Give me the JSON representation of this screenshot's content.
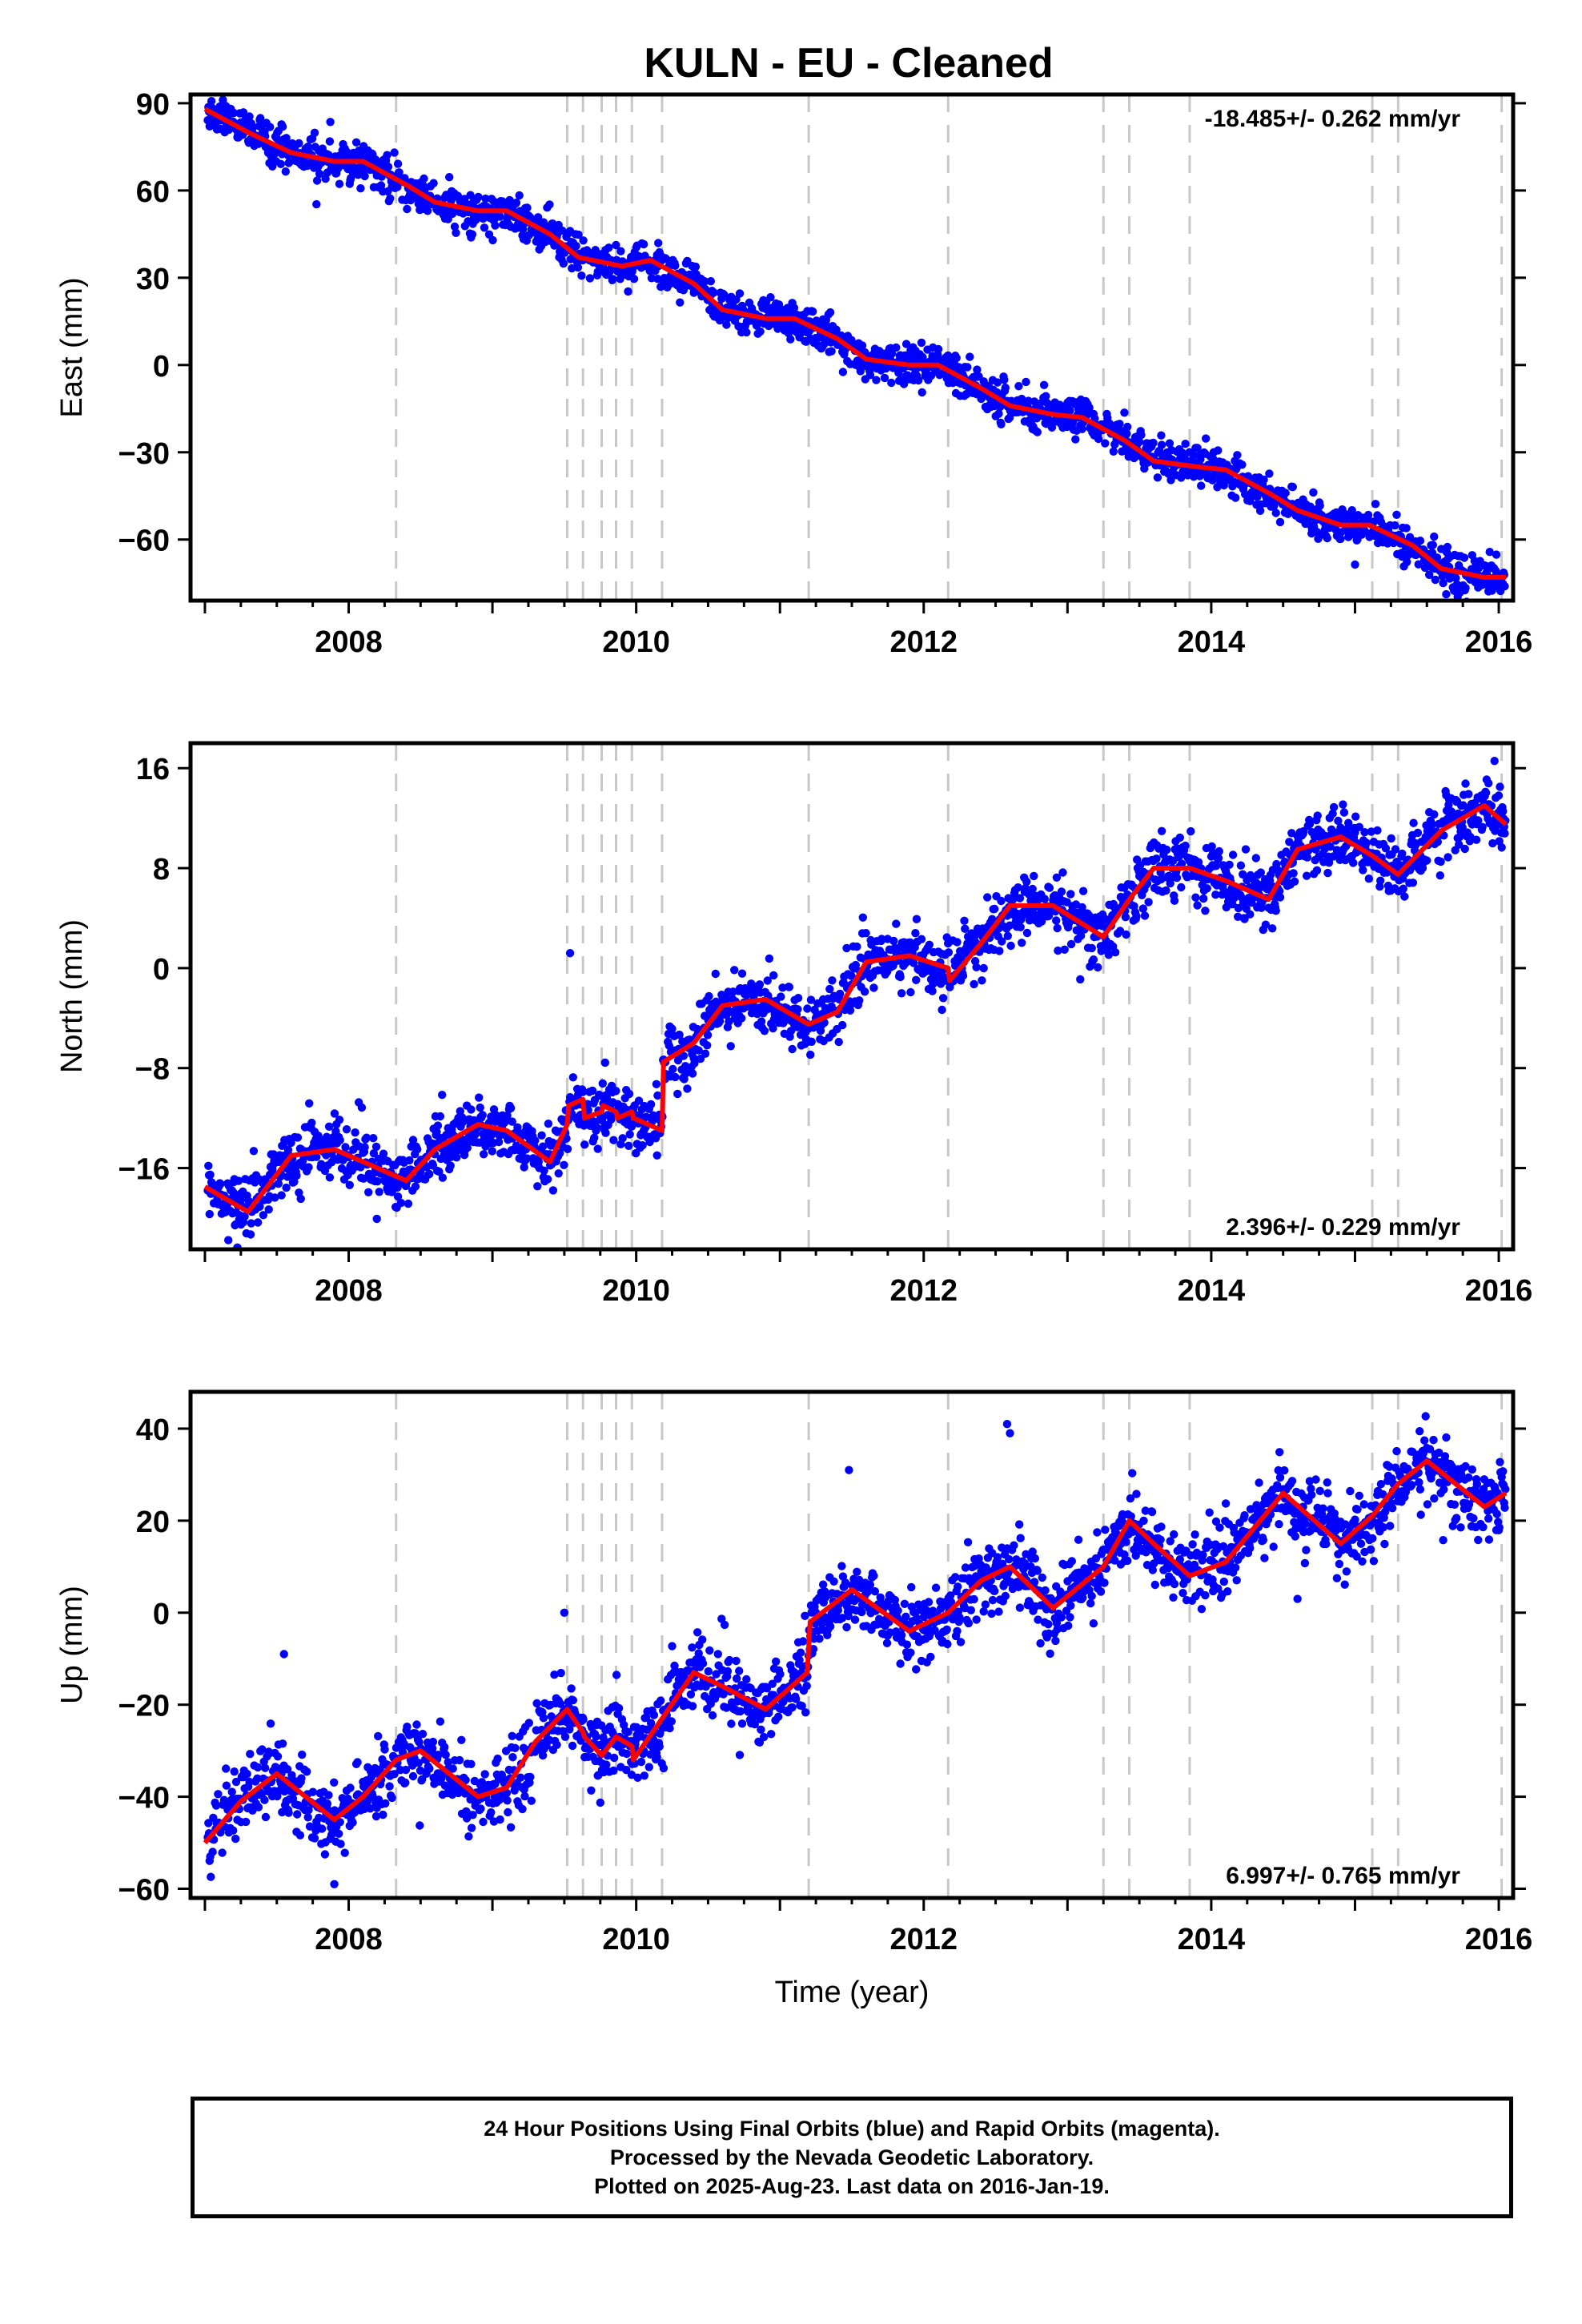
{
  "title": "KULN  - EU - Cleaned",
  "footer": {
    "line1": "24 Hour Positions Using Final Orbits (blue) and Rapid Orbits (magenta).",
    "line2": "Processed by the Nevada Geodetic Laboratory.",
    "line3": "Plotted on 2025-Aug-23. Last data on 2016-Jan-19."
  },
  "colors": {
    "points": "#0000ff",
    "model": "#ff0000",
    "breaks": "#c8c8c8",
    "frame": "#000000"
  },
  "chart_data": [
    {
      "type": "scatter",
      "ylabel": "East (mm)",
      "xlabel": "",
      "rate_label": "-18.485+/- 0.262 mm/yr",
      "rate_position": "top-right",
      "xlim": [
        2006.9,
        2016.1
      ],
      "ylim": [
        -81,
        93
      ],
      "xticks": [
        2008,
        2010,
        2012,
        2014,
        2016
      ],
      "yticks": [
        -60,
        -30,
        0,
        30,
        60,
        90
      ],
      "break_lines": [
        2008.33,
        2009.52,
        2009.63,
        2009.76,
        2009.86,
        2009.97,
        2010.18,
        2011.2,
        2012.17,
        2013.25,
        2013.43,
        2013.85,
        2015.12,
        2015.3,
        2016.02
      ],
      "model": {
        "x": [
          2007.0,
          2007.3,
          2007.6,
          2007.9,
          2008.1,
          2008.4,
          2008.6,
          2008.9,
          2009.1,
          2009.4,
          2009.6,
          2009.9,
          2010.1,
          2010.4,
          2010.6,
          2010.9,
          2011.1,
          2011.4,
          2011.6,
          2011.9,
          2012.1,
          2012.4,
          2012.6,
          2012.9,
          2013.1,
          2013.4,
          2013.6,
          2013.9,
          2014.1,
          2014.4,
          2014.6,
          2014.9,
          2015.1,
          2015.4,
          2015.6,
          2015.9,
          2016.05
        ],
        "y": [
          88,
          80,
          73,
          70,
          70,
          62,
          56,
          53,
          53,
          45,
          37,
          34,
          36,
          28,
          19,
          16,
          16,
          9,
          2,
          0,
          0,
          -8,
          -14,
          -17,
          -18,
          -26,
          -33,
          -35,
          -36,
          -44,
          -50,
          -55,
          -55,
          -62,
          -70,
          -73,
          -73
        ]
      },
      "scatter_spread": 3.2,
      "outliers": [
        {
          "x": 2015.55,
          "y": -59
        }
      ]
    },
    {
      "type": "scatter",
      "ylabel": "North (mm)",
      "xlabel": "",
      "rate_label": "2.396+/- 0.229 mm/yr",
      "rate_position": "bottom-right",
      "xlim": [
        2006.9,
        2016.1
      ],
      "ylim": [
        -22.5,
        18
      ],
      "xticks": [
        2008,
        2010,
        2012,
        2014,
        2016
      ],
      "yticks": [
        -16,
        -8,
        0,
        8,
        16
      ],
      "break_lines": [
        2008.33,
        2009.52,
        2009.63,
        2009.76,
        2009.86,
        2009.97,
        2010.18,
        2011.2,
        2012.17,
        2013.25,
        2013.43,
        2013.85,
        2015.12,
        2015.3,
        2016.02
      ],
      "model": {
        "x": [
          2007.0,
          2007.3,
          2007.6,
          2007.9,
          2008.1,
          2008.4,
          2008.6,
          2008.9,
          2009.1,
          2009.4,
          2009.52,
          2009.53,
          2009.63,
          2009.64,
          2009.76,
          2009.77,
          2009.86,
          2009.87,
          2009.97,
          2009.98,
          2010.18,
          2010.19,
          2010.4,
          2010.6,
          2010.9,
          2011.2,
          2011.4,
          2011.6,
          2011.9,
          2012.17,
          2012.18,
          2012.4,
          2012.6,
          2012.9,
          2013.25,
          2013.43,
          2013.6,
          2013.85,
          2014.1,
          2014.4,
          2014.6,
          2014.9,
          2015.12,
          2015.3,
          2015.6,
          2015.9,
          2016.05
        ],
        "y": [
          -17.5,
          -19.5,
          -15,
          -14.5,
          -15.5,
          -17,
          -14.5,
          -12.5,
          -13,
          -15.5,
          -12.5,
          -11,
          -10.5,
          -12,
          -11.5,
          -11,
          -11.5,
          -12,
          -11.5,
          -12,
          -13,
          -7.5,
          -6,
          -3,
          -2.5,
          -4.5,
          -3.5,
          0.5,
          1,
          0,
          -1,
          2,
          5,
          5,
          2.5,
          5.5,
          8,
          8,
          7,
          5.5,
          9.5,
          10.5,
          9,
          7.5,
          11,
          13,
          11.5
        ]
      },
      "scatter_spread": 1.2,
      "outliers": [
        {
          "x": 2009.54,
          "y": 1.2
        }
      ]
    },
    {
      "type": "scatter",
      "ylabel": "Up (mm)",
      "xlabel": "Time (year)",
      "rate_label": "6.997+/- 0.765 mm/yr",
      "rate_position": "bottom-right",
      "xlim": [
        2006.9,
        2016.1
      ],
      "ylim": [
        -62,
        48
      ],
      "xticks": [
        2008,
        2010,
        2012,
        2014,
        2016
      ],
      "yticks": [
        -60,
        -40,
        -20,
        0,
        20,
        40
      ],
      "break_lines": [
        2008.33,
        2009.52,
        2009.63,
        2009.76,
        2009.86,
        2009.97,
        2010.18,
        2011.2,
        2012.17,
        2013.25,
        2013.43,
        2013.85,
        2015.12,
        2015.3,
        2016.02
      ],
      "model": {
        "x": [
          2007.0,
          2007.25,
          2007.5,
          2007.7,
          2007.9,
          2008.1,
          2008.33,
          2008.5,
          2008.7,
          2008.9,
          2009.1,
          2009.3,
          2009.52,
          2009.63,
          2009.64,
          2009.76,
          2009.86,
          2009.97,
          2009.98,
          2010.18,
          2010.4,
          2010.6,
          2010.9,
          2011.19,
          2011.21,
          2011.5,
          2011.9,
          2012.17,
          2012.4,
          2012.6,
          2012.9,
          2013.25,
          2013.43,
          2013.6,
          2013.85,
          2014.1,
          2014.5,
          2014.9,
          2015.12,
          2015.3,
          2015.5,
          2015.9,
          2016.05
        ],
        "y": [
          -50,
          -41,
          -35,
          -40,
          -45,
          -40,
          -32,
          -30,
          -35,
          -40,
          -38,
          -28,
          -21,
          -26,
          -27,
          -31,
          -27,
          -29,
          -32,
          -23,
          -13,
          -16,
          -21,
          -13,
          -2,
          5,
          -4,
          0,
          7,
          10,
          1,
          10,
          20,
          15,
          8,
          11,
          26,
          15,
          21,
          28,
          33,
          23,
          26
        ]
      },
      "scatter_spread": 3.8,
      "outliers": [
        {
          "x": 2007.55,
          "y": -9
        },
        {
          "x": 2012.58,
          "y": 41
        },
        {
          "x": 2012.6,
          "y": 39
        },
        {
          "x": 2009.5,
          "y": 0
        },
        {
          "x": 2011.48,
          "y": 31
        },
        {
          "x": 2014.6,
          "y": 3
        },
        {
          "x": 2007.9,
          "y": -59
        }
      ]
    }
  ]
}
